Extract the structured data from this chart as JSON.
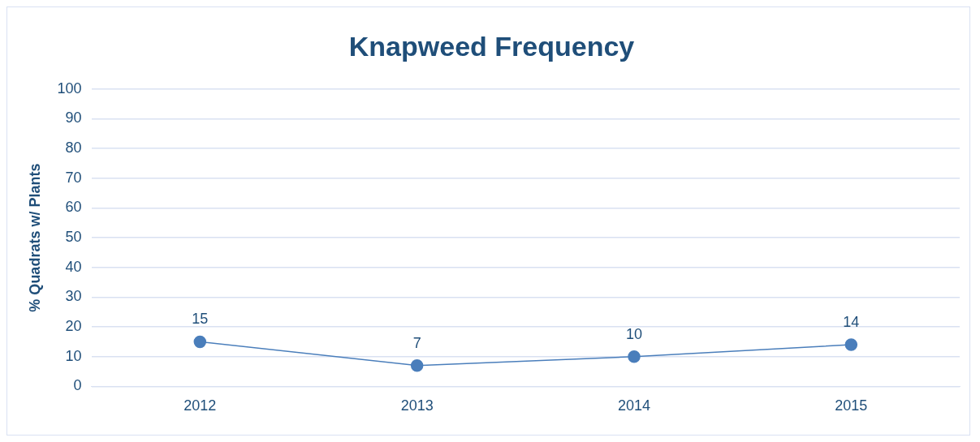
{
  "chart_data": {
    "type": "line",
    "title": "Knapweed Frequency",
    "ylabel": "% Quadrats w/ Plants",
    "categories": [
      "2012",
      "2013",
      "2014",
      "2015"
    ],
    "series": [
      {
        "color": "#4a7ebb",
        "values": [
          15,
          7,
          10,
          14
        ]
      }
    ],
    "ylim": [
      0,
      100
    ],
    "yticks": [
      0,
      10,
      20,
      30,
      40,
      50,
      60,
      70,
      80,
      90,
      100
    ],
    "grid": "y",
    "legend": false,
    "marker": "circle",
    "line_style": "solid",
    "data_labels": true
  }
}
